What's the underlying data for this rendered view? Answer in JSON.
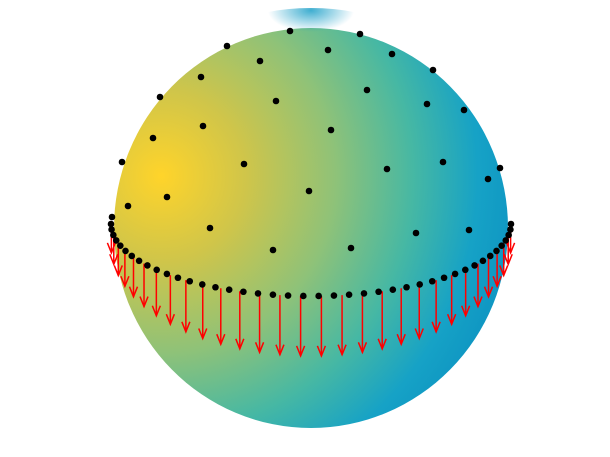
{
  "figure": {
    "kind": "sphere-surface-with-points-and-vectors",
    "colors": {
      "background": "#ffffff",
      "hot": "#f5cf2c",
      "mid": "#6cc08a",
      "cool": "#129fc8",
      "cool_edge": "#0a88bd",
      "points": "#000000",
      "vectors": "#ff0000"
    },
    "point_count_surface": 31,
    "point_count_equator": 42,
    "vector_count": 30
  }
}
